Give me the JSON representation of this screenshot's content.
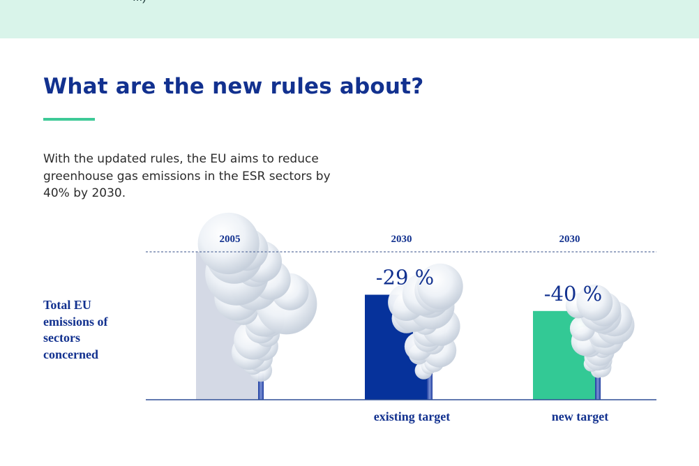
{
  "banner": {
    "text": "...)"
  },
  "header": {
    "title": "What are the new rules about?",
    "intro": "With the updated rules, the EU aims to reduce greenhouse gas emissions in the ESR sectors by 40% by 2030."
  },
  "colors": {
    "title": "#12318f",
    "accent": "#3ec997",
    "banner": "#d9f4ea",
    "bar_2005": "#d4d9e5",
    "bar_existing": "#06329b",
    "bar_new": "#33c995"
  },
  "chart_data": {
    "type": "bar",
    "ylabel": "Total EU emissions of sectors concerned",
    "categories": [
      "2005",
      "2030",
      "2030"
    ],
    "sublabels": [
      "",
      "existing target",
      "new target"
    ],
    "values": [
      100,
      71,
      60
    ],
    "value_labels": [
      "",
      "-29 %",
      "-40 %"
    ],
    "reference_line": 100,
    "ylim": [
      0,
      100
    ],
    "grid": false,
    "icon": "smokestack-icon"
  }
}
